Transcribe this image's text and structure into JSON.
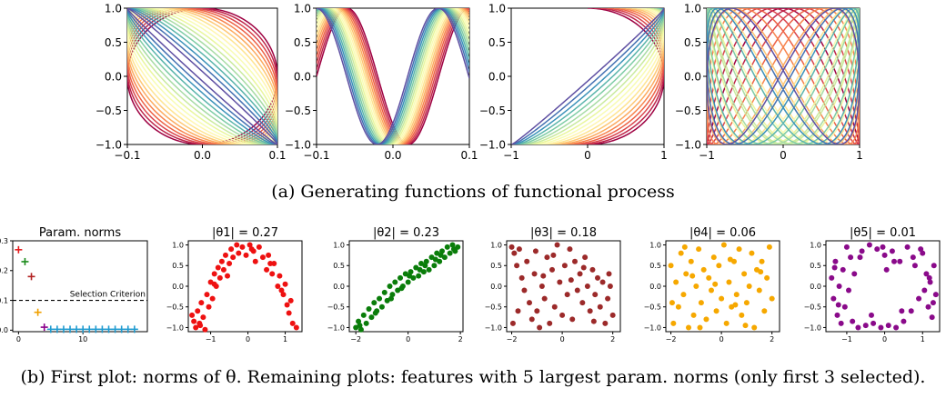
{
  "captions": {
    "a": "(a) Generating functions of functional process",
    "b": "(b) First plot: norms of θ. Remaining plots: features with 5 largest param. norms (only first 3 selected)."
  },
  "chart_data": [
    {
      "type": "line",
      "panel": "generating-function-1",
      "curve": {
        "x": "0.1*sin(t)",
        "y": "cos(t + phase)"
      },
      "phase_range": [
        0.0,
        1.5
      ],
      "xlim": [
        -0.1,
        0.1
      ],
      "ylim": [
        -1.0,
        1.0
      ],
      "xticks": [
        "−0.1",
        "0.0",
        "0.1"
      ],
      "yticks": [
        "−1.0",
        "−0.5",
        "0.0",
        "0.5",
        "1.0"
      ],
      "colormap": "Spectral",
      "n_curves": 18
    },
    {
      "type": "line",
      "panel": "generating-function-2",
      "curve": {
        "x": "-0.1 + 0.2*t",
        "y": "sin(2.5*pi*t + phase)"
      },
      "phase_range": [
        0.0,
        1.6
      ],
      "xlim": [
        -0.1,
        0.1
      ],
      "ylim": [
        -1.0,
        1.0
      ],
      "xticks": [
        "−0.1",
        "0.0",
        "0.1"
      ],
      "yticks": [
        "−1.0",
        "−0.5",
        "0.0",
        "0.5",
        "1.0"
      ],
      "colormap": "Spectral",
      "n_curves": 18
    },
    {
      "type": "line",
      "panel": "generating-function-3",
      "curve": {
        "x": "sin(t + phase)",
        "y": "cos(t)"
      },
      "phase_range": [
        0.0,
        1.5
      ],
      "xlim": [
        -1,
        1
      ],
      "ylim": [
        -1.0,
        1.0
      ],
      "xticks": [
        "−1",
        "0",
        "1"
      ],
      "yticks": [
        "−1.0",
        "−0.5",
        "0.0",
        "0.5",
        "1.0"
      ],
      "colormap": "Spectral",
      "n_curves": 18
    },
    {
      "type": "line",
      "panel": "generating-function-4",
      "curve": {
        "x": "sin(t + phase)",
        "y": "cos(2*t)"
      },
      "phase_range": [
        0.0,
        2.4
      ],
      "xlim": [
        -1,
        1
      ],
      "ylim": [
        -1.0,
        1.0
      ],
      "xticks": [
        "−1",
        "0",
        "1"
      ],
      "yticks": [
        "−1.0",
        "−0.5",
        "0.0",
        "0.5",
        "1.0"
      ],
      "colormap": "Spectral",
      "n_curves": 18
    },
    {
      "type": "scatter",
      "panel": "param-norms",
      "title": "Param. norms",
      "threshold": {
        "value": 0.1,
        "label": "Selection Criterion"
      },
      "points": [
        {
          "x": 0,
          "y": 0.27,
          "color": "#e41a1c"
        },
        {
          "x": 1,
          "y": 0.23,
          "color": "#1a8a1a"
        },
        {
          "x": 2,
          "y": 0.18,
          "color": "#b22222"
        },
        {
          "x": 3,
          "y": 0.06,
          "color": "#f0a000"
        },
        {
          "x": 4,
          "y": 0.01,
          "color": "#8b008b"
        },
        {
          "x": 5,
          "y": 0.003,
          "color": "#1f9bd0"
        },
        {
          "x": 6,
          "y": 0.003,
          "color": "#1f9bd0"
        },
        {
          "x": 7,
          "y": 0.003,
          "color": "#1f9bd0"
        },
        {
          "x": 8,
          "y": 0.003,
          "color": "#1f9bd0"
        },
        {
          "x": 9,
          "y": 0.003,
          "color": "#1f9bd0"
        },
        {
          "x": 10,
          "y": 0.003,
          "color": "#1f9bd0"
        },
        {
          "x": 11,
          "y": 0.003,
          "color": "#1f9bd0"
        },
        {
          "x": 12,
          "y": 0.003,
          "color": "#1f9bd0"
        },
        {
          "x": 13,
          "y": 0.003,
          "color": "#1f9bd0"
        },
        {
          "x": 14,
          "y": 0.003,
          "color": "#1f9bd0"
        },
        {
          "x": 15,
          "y": 0.003,
          "color": "#1f9bd0"
        },
        {
          "x": 16,
          "y": 0.003,
          "color": "#1f9bd0"
        },
        {
          "x": 17,
          "y": 0.003,
          "color": "#1f9bd0"
        },
        {
          "x": 18,
          "y": 0.003,
          "color": "#1f9bd0"
        }
      ],
      "xlim": [
        -0.9,
        20
      ],
      "ylim": [
        -0.005,
        0.3
      ],
      "xticks": [
        "0",
        "10"
      ],
      "yticks": [
        "0.0",
        "0.1",
        "0.2",
        "0.3"
      ]
    },
    {
      "type": "scatter",
      "panel": "feature-1",
      "title": "|θ1| = 0.27",
      "color": "#ee1111",
      "xlim": [
        -1.6,
        1.45
      ],
      "ylim": [
        -1.1,
        1.1
      ],
      "xticks": [
        "−1",
        "0",
        "1"
      ],
      "yticks": [
        "−1.0",
        "−0.5",
        "0.0",
        "0.5",
        "1.0"
      ],
      "points": [
        [
          -1.5,
          -0.7
        ],
        [
          -1.45,
          -0.85
        ],
        [
          -1.4,
          -1.0
        ],
        [
          -1.35,
          -0.6
        ],
        [
          -1.3,
          -0.9
        ],
        [
          -1.25,
          -0.4
        ],
        [
          -1.2,
          -0.75
        ],
        [
          -1.15,
          -1.05
        ],
        [
          -1.1,
          -0.2
        ],
        [
          -1.05,
          -0.5
        ],
        [
          -1.0,
          0.1
        ],
        [
          -0.95,
          -0.3
        ],
        [
          -0.9,
          0.3
        ],
        [
          -0.85,
          0.0
        ],
        [
          -0.8,
          0.45
        ],
        [
          -0.75,
          0.2
        ],
        [
          -0.7,
          0.6
        ],
        [
          -0.65,
          0.4
        ],
        [
          -0.6,
          0.75
        ],
        [
          -0.5,
          0.55
        ],
        [
          -0.45,
          0.9
        ],
        [
          -0.4,
          0.7
        ],
        [
          -0.3,
          1.0
        ],
        [
          -0.25,
          0.8
        ],
        [
          -0.15,
          0.95
        ],
        [
          -0.05,
          0.75
        ],
        [
          0.05,
          1.0
        ],
        [
          0.15,
          0.85
        ],
        [
          0.2,
          0.6
        ],
        [
          0.3,
          0.95
        ],
        [
          0.4,
          0.7
        ],
        [
          0.5,
          0.4
        ],
        [
          0.55,
          0.75
        ],
        [
          0.65,
          0.3
        ],
        [
          0.7,
          0.55
        ],
        [
          0.8,
          0.0
        ],
        [
          0.85,
          0.25
        ],
        [
          0.95,
          -0.2
        ],
        [
          1.0,
          0.05
        ],
        [
          1.05,
          -0.45
        ],
        [
          1.1,
          -0.65
        ],
        [
          1.15,
          -0.35
        ],
        [
          1.2,
          -0.9
        ],
        [
          1.3,
          -1.0
        ],
        [
          -1.28,
          -0.95
        ],
        [
          -0.55,
          0.25
        ],
        [
          0.1,
          0.9
        ],
        [
          0.6,
          0.55
        ],
        [
          0.9,
          -0.1
        ],
        [
          -0.9,
          0.05
        ]
      ]
    },
    {
      "type": "scatter",
      "panel": "feature-2",
      "title": "|θ2| = 0.23",
      "color": "#0a7d0a",
      "xlim": [
        -2.25,
        2.1
      ],
      "ylim": [
        -1.1,
        1.1
      ],
      "xticks": [
        "−2",
        "0",
        "2"
      ],
      "yticks": [
        "−1.0",
        "−0.5",
        "0.0",
        "0.5",
        "1.0"
      ],
      "points": [
        [
          -2.0,
          -1.0
        ],
        [
          -1.9,
          -0.85
        ],
        [
          -1.8,
          -1.05
        ],
        [
          -1.7,
          -0.7
        ],
        [
          -1.6,
          -0.9
        ],
        [
          -1.5,
          -0.55
        ],
        [
          -1.4,
          -0.75
        ],
        [
          -1.3,
          -0.4
        ],
        [
          -1.2,
          -0.6
        ],
        [
          -1.1,
          -0.3
        ],
        [
          -1.0,
          -0.5
        ],
        [
          -0.9,
          -0.15
        ],
        [
          -0.8,
          -0.35
        ],
        [
          -0.7,
          0.0
        ],
        [
          -0.6,
          -0.2
        ],
        [
          -0.5,
          0.1
        ],
        [
          -0.4,
          -0.1
        ],
        [
          -0.3,
          0.2
        ],
        [
          -0.2,
          0.0
        ],
        [
          -0.1,
          0.3
        ],
        [
          0.0,
          0.1
        ],
        [
          0.1,
          0.35
        ],
        [
          0.2,
          0.2
        ],
        [
          0.3,
          0.45
        ],
        [
          0.4,
          0.25
        ],
        [
          0.5,
          0.55
        ],
        [
          0.6,
          0.35
        ],
        [
          0.7,
          0.6
        ],
        [
          0.8,
          0.4
        ],
        [
          0.9,
          0.7
        ],
        [
          1.0,
          0.5
        ],
        [
          1.1,
          0.8
        ],
        [
          1.2,
          0.6
        ],
        [
          1.3,
          0.85
        ],
        [
          1.4,
          0.7
        ],
        [
          1.5,
          0.95
        ],
        [
          1.6,
          0.8
        ],
        [
          1.7,
          1.0
        ],
        [
          1.8,
          0.85
        ],
        [
          1.9,
          0.95
        ],
        [
          -1.85,
          -0.95
        ],
        [
          -1.25,
          -0.65
        ],
        [
          -0.65,
          -0.3
        ],
        [
          0.05,
          0.25
        ],
        [
          0.65,
          0.5
        ],
        [
          1.25,
          0.75
        ],
        [
          1.75,
          0.9
        ],
        [
          -0.25,
          -0.05
        ],
        [
          0.45,
          0.4
        ],
        [
          1.05,
          0.65
        ]
      ]
    },
    {
      "type": "scatter",
      "panel": "feature-3",
      "title": "|θ3| = 0.18",
      "color": "#9c2a2a",
      "xlim": [
        -2.2,
        2.3
      ],
      "ylim": [
        -1.1,
        1.1
      ],
      "xticks": [
        "−2",
        "0",
        "2"
      ],
      "yticks": [
        "−1.0",
        "−0.5",
        "0.0",
        "0.5",
        "1.0"
      ],
      "points": [
        [
          -2.0,
          0.95
        ],
        [
          -1.9,
          0.8
        ],
        [
          -1.8,
          0.5
        ],
        [
          -1.7,
          0.9
        ],
        [
          -1.6,
          0.2
        ],
        [
          -1.5,
          -0.1
        ],
        [
          -1.4,
          0.6
        ],
        [
          -1.3,
          -0.4
        ],
        [
          -1.2,
          -0.8
        ],
        [
          -1.1,
          0.3
        ],
        [
          -1.0,
          -0.6
        ],
        [
          -0.9,
          -1.0
        ],
        [
          -0.8,
          0.0
        ],
        [
          -0.7,
          -0.3
        ],
        [
          -0.6,
          0.7
        ],
        [
          -0.5,
          -0.9
        ],
        [
          -0.4,
          0.4
        ],
        [
          -0.3,
          -0.5
        ],
        [
          -0.2,
          1.0
        ],
        [
          -0.1,
          0.1
        ],
        [
          0.0,
          -0.7
        ],
        [
          0.1,
          0.5
        ],
        [
          0.2,
          -0.2
        ],
        [
          0.3,
          0.9
        ],
        [
          0.4,
          -0.8
        ],
        [
          0.5,
          0.6
        ],
        [
          0.6,
          -0.1
        ],
        [
          0.7,
          0.3
        ],
        [
          0.8,
          -0.4
        ],
        [
          0.9,
          0.7
        ],
        [
          1.0,
          0.0
        ],
        [
          1.1,
          -0.6
        ],
        [
          1.2,
          0.4
        ],
        [
          1.3,
          -0.2
        ],
        [
          1.4,
          0.2
        ],
        [
          1.5,
          -0.5
        ],
        [
          1.6,
          0.1
        ],
        [
          1.7,
          -0.9
        ],
        [
          1.8,
          -0.3
        ],
        [
          1.9,
          0.0
        ],
        [
          2.0,
          -0.7
        ],
        [
          -1.95,
          -0.9
        ],
        [
          -1.75,
          -0.6
        ],
        [
          -1.05,
          0.85
        ],
        [
          -0.35,
          0.75
        ],
        [
          0.35,
          0.15
        ],
        [
          1.25,
          -0.85
        ],
        [
          1.85,
          0.3
        ],
        [
          -0.75,
          0.25
        ],
        [
          0.85,
          0.45
        ]
      ]
    },
    {
      "type": "scatter",
      "panel": "feature-4",
      "title": "|θ4| = 0.06",
      "color": "#f6a800",
      "xlim": [
        -2.2,
        2.3
      ],
      "ylim": [
        -1.1,
        1.1
      ],
      "xticks": [
        "−2",
        "0",
        "2"
      ],
      "yticks": [
        "−1.0",
        "−0.5",
        "0.0",
        "0.5",
        "1.0"
      ],
      "points": [
        [
          -2.0,
          0.5
        ],
        [
          -1.9,
          -0.9
        ],
        [
          -1.8,
          0.1
        ],
        [
          -1.7,
          -0.5
        ],
        [
          -1.6,
          0.8
        ],
        [
          -1.5,
          -0.2
        ],
        [
          -1.4,
          0.3
        ],
        [
          -1.3,
          -1.0
        ],
        [
          -1.2,
          0.6
        ],
        [
          -1.1,
          -0.7
        ],
        [
          -1.0,
          0.0
        ],
        [
          -0.9,
          0.9
        ],
        [
          -0.8,
          -0.4
        ],
        [
          -0.7,
          0.4
        ],
        [
          -0.6,
          -0.8
        ],
        [
          -0.5,
          0.2
        ],
        [
          -0.4,
          -0.1
        ],
        [
          -0.3,
          0.7
        ],
        [
          -0.2,
          -0.6
        ],
        [
          -0.1,
          0.5
        ],
        [
          0.0,
          -0.3
        ],
        [
          0.1,
          1.0
        ],
        [
          0.2,
          -0.9
        ],
        [
          0.3,
          0.1
        ],
        [
          0.4,
          -0.5
        ],
        [
          0.5,
          0.6
        ],
        [
          0.6,
          -0.2
        ],
        [
          0.7,
          0.9
        ],
        [
          0.8,
          -0.7
        ],
        [
          0.9,
          0.3
        ],
        [
          1.0,
          -0.4
        ],
        [
          1.1,
          0.0
        ],
        [
          1.2,
          0.8
        ],
        [
          1.3,
          -1.0
        ],
        [
          1.4,
          0.4
        ],
        [
          1.5,
          -0.1
        ],
        [
          1.6,
          0.6
        ],
        [
          1.7,
          -0.6
        ],
        [
          1.8,
          0.2
        ],
        [
          1.9,
          0.95
        ],
        [
          2.0,
          -0.3
        ],
        [
          -1.95,
          -0.4
        ],
        [
          -1.45,
          0.95
        ],
        [
          -0.85,
          -1.0
        ],
        [
          -0.25,
          0.05
        ],
        [
          0.35,
          0.65
        ],
        [
          0.95,
          -0.95
        ],
        [
          1.55,
          0.35
        ],
        [
          -1.15,
          0.25
        ],
        [
          0.55,
          -0.45
        ]
      ]
    },
    {
      "type": "scatter",
      "panel": "feature-5",
      "title": "|θ5| = 0.01",
      "color": "#8a0a8a",
      "xlim": [
        -1.55,
        1.45
      ],
      "ylim": [
        -1.1,
        1.1
      ],
      "xticks": [
        "−1",
        "0",
        "1"
      ],
      "yticks": [
        "−1.0",
        "−0.5",
        "0.0",
        "0.5",
        "1.0"
      ],
      "points": [
        [
          -1.4,
          0.2
        ],
        [
          -1.35,
          -0.3
        ],
        [
          -1.3,
          0.6
        ],
        [
          -1.25,
          -0.7
        ],
        [
          -1.2,
          0.0
        ],
        [
          -1.15,
          -0.9
        ],
        [
          -1.1,
          0.4
        ],
        [
          -1.05,
          -0.5
        ],
        [
          -1.0,
          0.95
        ],
        [
          -0.95,
          -0.1
        ],
        [
          -0.9,
          0.7
        ],
        [
          -0.85,
          -0.85
        ],
        [
          -0.8,
          0.3
        ],
        [
          -0.7,
          -1.0
        ],
        [
          -0.6,
          0.85
        ],
        [
          -0.5,
          -0.95
        ],
        [
          -0.4,
          1.0
        ],
        [
          -0.3,
          -0.9
        ],
        [
          -0.2,
          0.9
        ],
        [
          -0.1,
          -1.0
        ],
        [
          0.0,
          0.75
        ],
        [
          0.1,
          -0.95
        ],
        [
          0.2,
          0.85
        ],
        [
          0.3,
          -1.0
        ],
        [
          0.4,
          0.6
        ],
        [
          0.5,
          -0.85
        ],
        [
          0.6,
          0.95
        ],
        [
          0.7,
          -0.6
        ],
        [
          0.8,
          0.5
        ],
        [
          0.9,
          -0.3
        ],
        [
          1.0,
          0.8
        ],
        [
          1.05,
          -0.1
        ],
        [
          1.1,
          0.3
        ],
        [
          1.15,
          -0.5
        ],
        [
          1.2,
          0.1
        ],
        [
          1.25,
          -0.75
        ],
        [
          1.3,
          0.5
        ],
        [
          1.35,
          -0.2
        ],
        [
          -1.32,
          0.45
        ],
        [
          -0.65,
          0.7
        ],
        [
          0.05,
          0.4
        ],
        [
          0.75,
          0.7
        ],
        [
          1.28,
          -0.4
        ],
        [
          -0.35,
          -0.7
        ],
        [
          0.45,
          -0.6
        ],
        [
          -1.22,
          -0.45
        ],
        [
          0.95,
          0.9
        ],
        [
          -0.05,
          0.95
        ],
        [
          0.25,
          0.6
        ],
        [
          1.18,
          0.2
        ]
      ]
    }
  ]
}
